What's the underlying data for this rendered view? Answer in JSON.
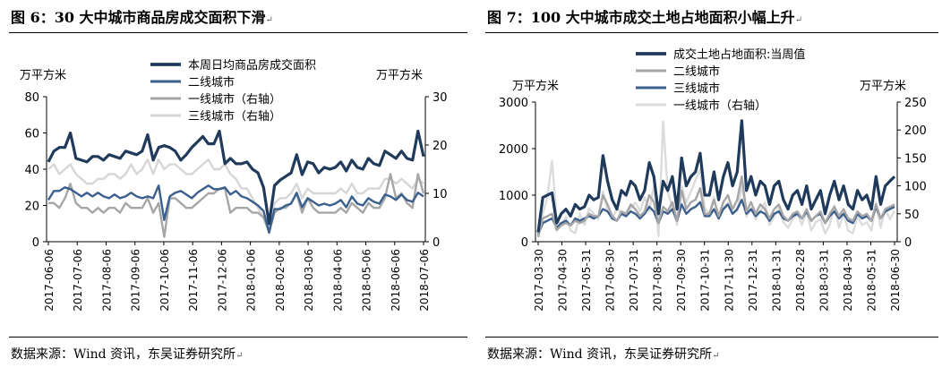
{
  "left": {
    "title": "图 6：30 大中城市商品房成交面积下滑",
    "source": "数据来源：Wind 资讯，东吴证券研究所",
    "chart_data": {
      "type": "line",
      "title": "30大中城市商品房成交面积",
      "ylabel_left": "万平方米",
      "ylabel_right": "万平方米",
      "ylim_left": [
        0,
        80
      ],
      "ylim_right": [
        0,
        30
      ],
      "yticks_left": [
        "0",
        "20",
        "40",
        "60",
        "80"
      ],
      "yticks_right": [
        "0",
        "10",
        "20",
        "30"
      ],
      "xtick_labels": [
        "2017-06-06",
        "2017-07-06",
        "2017-08-06",
        "2017-09-06",
        "2017-10-06",
        "2017-11-06",
        "2017-12-06",
        "2018-01-06",
        "2018-02-06",
        "2018-03-06",
        "2018-04-06",
        "2018-05-06",
        "2018-06-06",
        "2018-07-06"
      ],
      "series": [
        {
          "name": "本周日均商品房成交面积",
          "axis": "left",
          "color": "#1f3a5a",
          "width": 3.2,
          "values": [
            44,
            50,
            52,
            52,
            60,
            46,
            45,
            44,
            47,
            47,
            45,
            48,
            47,
            46,
            50,
            49,
            48,
            50,
            59,
            45,
            52,
            53,
            52,
            50,
            45,
            48,
            52,
            55,
            58,
            54,
            54,
            61,
            43,
            46,
            43,
            43,
            44,
            40,
            38,
            30,
            10,
            31,
            34,
            36,
            38,
            48,
            37,
            44,
            43,
            38,
            41,
            40,
            41,
            44,
            39,
            45,
            41,
            40,
            46,
            43,
            42,
            50,
            48,
            46,
            50,
            46,
            45,
            61,
            47
          ]
        },
        {
          "name": "二线城市",
          "axis": "left",
          "color": "#3b5f8e",
          "width": 2.4,
          "values": [
            23,
            28,
            28,
            30,
            29,
            27,
            25,
            27,
            25,
            27,
            25,
            24,
            26,
            24,
            25,
            27,
            25,
            24,
            25,
            24,
            31,
            12,
            25,
            27,
            28,
            26,
            24,
            27,
            29,
            31,
            29,
            29,
            30,
            26,
            28,
            25,
            24,
            22,
            20,
            17,
            5,
            18,
            18,
            20,
            21,
            27,
            19,
            24,
            22,
            20,
            21,
            20,
            21,
            23,
            19,
            25,
            21,
            20,
            24,
            22,
            21,
            26,
            25,
            23,
            26,
            23,
            22,
            27,
            25
          ]
        },
        {
          "name": "一线城市（右轴）",
          "axis": "right",
          "color": "#a6a6a6",
          "width": 2.4,
          "values": [
            8,
            8,
            7,
            9,
            12,
            8,
            7,
            7,
            6,
            7,
            6,
            7,
            7,
            6,
            8,
            7,
            7,
            7,
            9,
            6,
            8,
            1,
            9,
            9,
            8,
            7,
            7,
            8,
            9,
            10,
            10,
            11,
            11,
            6,
            7,
            7,
            7,
            6,
            6,
            5,
            2,
            6,
            7,
            7,
            8,
            10,
            6,
            9,
            7,
            6,
            6,
            6,
            6,
            7,
            6,
            8,
            7,
            6,
            8,
            7,
            7,
            9,
            14,
            9,
            10,
            8,
            7,
            14,
            10
          ]
        },
        {
          "name": "三线城市（右轴）",
          "axis": "right",
          "color": "#d6d6d6",
          "width": 2.4,
          "values": [
            15,
            16,
            14,
            15,
            16,
            14,
            13,
            12,
            12,
            13,
            13,
            14,
            14,
            13,
            14,
            16,
            14,
            15,
            17,
            14,
            17,
            15,
            16,
            16,
            15,
            14,
            14,
            15,
            16,
            17,
            15,
            15,
            16,
            14,
            13,
            11,
            11,
            9,
            7,
            5,
            3,
            8,
            9,
            9,
            10,
            12,
            9,
            11,
            10,
            10,
            10,
            10,
            10,
            11,
            10,
            12,
            10,
            10,
            11,
            11,
            11,
            13,
            13,
            12,
            13,
            12,
            11,
            13,
            12
          ]
        }
      ]
    }
  },
  "right": {
    "title": "图 7：100 大中城市成交土地占地面积小幅上升",
    "source": "数据来源：Wind 资讯，东吴证券研究所",
    "chart_data": {
      "type": "line",
      "title": "100大中城市成交土地占地面积",
      "ylabel_left": "万平方米",
      "ylabel_right": "万平方米",
      "ylim_left": [
        0,
        3000
      ],
      "ylim_right": [
        0,
        250
      ],
      "yticks_left": [
        "0",
        "1000",
        "2000",
        "3000"
      ],
      "yticks_right": [
        "0",
        "50",
        "100",
        "150",
        "200",
        "250"
      ],
      "xtick_labels": [
        "2017-03-30",
        "2017-04-30",
        "2017-05-31",
        "2017-06-30",
        "2017-07-31",
        "2017-08-31",
        "2017-09-30",
        "2017-10-31",
        "2017-11-30",
        "2017-12-31",
        "2018-01-31",
        "2018-02-28",
        "2018-03-31",
        "2018-04-30",
        "2018-05-31",
        "2018-06-30"
      ],
      "series": [
        {
          "name": "成交土地占地面积:当周值",
          "axis": "left",
          "color": "#1f3a5a",
          "width": 3.2,
          "values": [
            200,
            950,
            1000,
            1050,
            400,
            600,
            700,
            550,
            800,
            700,
            750,
            1000,
            900,
            950,
            1850,
            1300,
            900,
            700,
            1100,
            1000,
            1300,
            1200,
            900,
            1100,
            1700,
            1400,
            600,
            1300,
            1100,
            1400,
            700,
            1800,
            1200,
            1400,
            1500,
            1900,
            1000,
            1000,
            1500,
            900,
            1400,
            1700,
            1200,
            1500,
            2600,
            1100,
            1400,
            1000,
            1300,
            1200,
            800,
            1200,
            1300,
            900,
            700,
            1000,
            1100,
            800,
            1200,
            700,
            900,
            1100,
            600,
            1000,
            1300,
            900,
            1200,
            800,
            700,
            1100,
            900,
            1000,
            700,
            1400,
            800,
            1200,
            1300,
            1400
          ]
        },
        {
          "name": "二线城市",
          "axis": "left",
          "color": "#a6a6a6",
          "width": 2.4,
          "values": [
            100,
            500,
            550,
            600,
            250,
            350,
            400,
            350,
            450,
            400,
            450,
            600,
            550,
            550,
            1000,
            800,
            550,
            450,
            650,
            600,
            800,
            700,
            550,
            650,
            1000,
            850,
            400,
            750,
            650,
            850,
            450,
            1100,
            700,
            850,
            900,
            1150,
            600,
            600,
            900,
            550,
            850,
            1000,
            700,
            900,
            1400,
            650,
            850,
            600,
            800,
            700,
            500,
            700,
            800,
            550,
            450,
            600,
            650,
            500,
            700,
            450,
            550,
            650,
            400,
            600,
            750,
            550,
            700,
            500,
            450,
            650,
            550,
            600,
            450,
            800,
            500,
            700,
            750,
            800
          ]
        },
        {
          "name": "三线城市",
          "axis": "left",
          "color": "#3b5f8e",
          "width": 2.4,
          "values": [
            150,
            400,
            450,
            500,
            300,
            400,
            450,
            350,
            500,
            450,
            500,
            550,
            500,
            550,
            700,
            650,
            500,
            450,
            600,
            550,
            650,
            600,
            500,
            600,
            750,
            650,
            400,
            650,
            600,
            700,
            450,
            800,
            600,
            700,
            750,
            850,
            550,
            550,
            700,
            500,
            700,
            800,
            600,
            700,
            900,
            600,
            700,
            550,
            650,
            600,
            450,
            600,
            650,
            500,
            450,
            550,
            600,
            500,
            650,
            450,
            550,
            600,
            400,
            550,
            650,
            500,
            600,
            450,
            400,
            600,
            500,
            550,
            450,
            750,
            500,
            650,
            700,
            750
          ]
        },
        {
          "name": "一线城市（右轴）",
          "axis": "right",
          "color": "#dcdcdc",
          "width": 2.4,
          "values": [
            20,
            50,
            80,
            145,
            40,
            30,
            45,
            20,
            15,
            50,
            30,
            60,
            50,
            40,
            90,
            55,
            40,
            60,
            50,
            45,
            60,
            70,
            55,
            80,
            55,
            100,
            10,
            215,
            90,
            60,
            30,
            100,
            70,
            90,
            110,
            130,
            60,
            50,
            80,
            40,
            60,
            70,
            50,
            55,
            100,
            45,
            60,
            40,
            55,
            70,
            30,
            45,
            60,
            35,
            25,
            40,
            50,
            30,
            55,
            20,
            35,
            40,
            15,
            30,
            65,
            25,
            50,
            20,
            15,
            45,
            30,
            35,
            20,
            70,
            25,
            60,
            40,
            55
          ]
        }
      ]
    }
  }
}
